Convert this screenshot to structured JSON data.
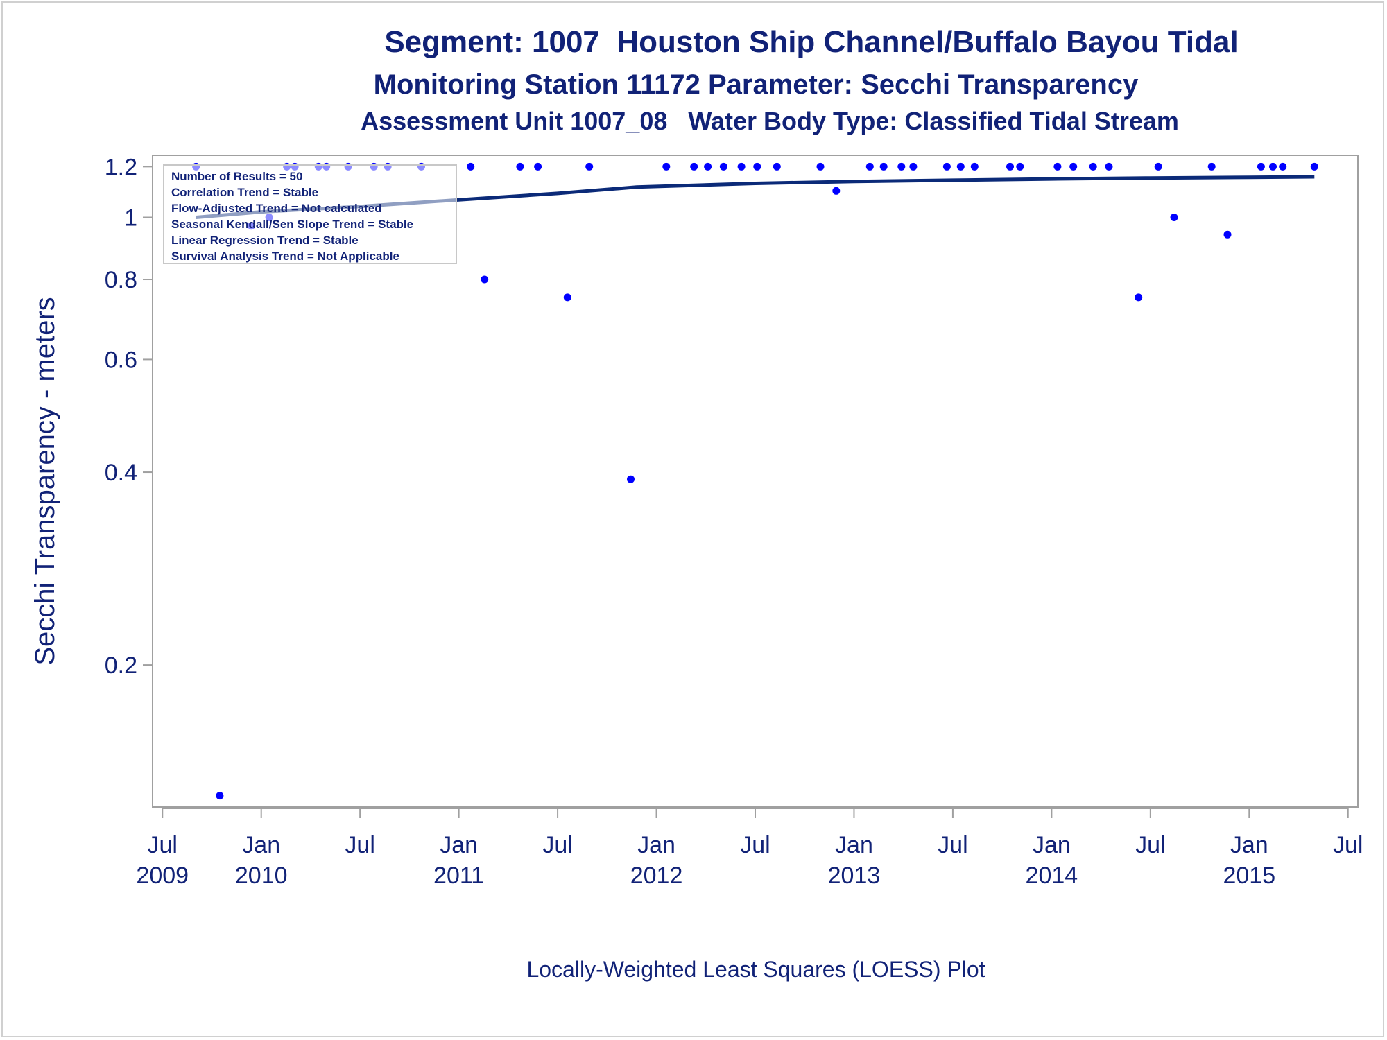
{
  "titles": {
    "line1": "Segment: 1007  Houston Ship Channel/Buffalo Bayou Tidal",
    "line2": "Monitoring Station 11172 Parameter: Secchi Transparency",
    "line3": "Assessment Unit 1007_08   Water Body Type: Classified Tidal Stream"
  },
  "footnote": "Locally-Weighted Least Squares (LOESS) Plot",
  "stats_box": [
    "Number of Results = 50",
    "Correlation Trend = Stable",
    "Flow-Adjusted Trend = Not calculated",
    "Seasonal Kendall/Sen Slope Trend = Stable",
    "Linear Regression Trend = Stable",
    "Survival Analysis Trend = Not Applicable"
  ],
  "colors": {
    "text": "#112277",
    "points": "#0000ff",
    "loess": "#0b2a78",
    "frame": "#a0a0a0"
  },
  "chart_data": {
    "type": "scatter",
    "ylabel": "Secchi Transparency - meters",
    "yscale": "log",
    "ylim": [
      0.12,
      1.25
    ],
    "yticks": [
      0.2,
      0.4,
      0.6,
      0.8,
      1,
      1.2
    ],
    "yticklabels": [
      "0.2",
      "0.4",
      "0.6",
      "0.8",
      "1",
      "1.2"
    ],
    "xlim": [
      2009.45,
      2015.55
    ],
    "xticks": [
      {
        "value": 2009.5,
        "line1": "Jul",
        "line2": "2009"
      },
      {
        "value": 2010.0,
        "line1": "Jan",
        "line2": "2010"
      },
      {
        "value": 2010.5,
        "line1": "Jul",
        "line2": ""
      },
      {
        "value": 2011.0,
        "line1": "Jan",
        "line2": "2011"
      },
      {
        "value": 2011.5,
        "line1": "Jul",
        "line2": ""
      },
      {
        "value": 2012.0,
        "line1": "Jan",
        "line2": "2012"
      },
      {
        "value": 2012.5,
        "line1": "Jul",
        "line2": ""
      },
      {
        "value": 2013.0,
        "line1": "Jan",
        "line2": "2013"
      },
      {
        "value": 2013.5,
        "line1": "Jul",
        "line2": ""
      },
      {
        "value": 2014.0,
        "line1": "Jan",
        "line2": "2014"
      },
      {
        "value": 2014.5,
        "line1": "Jul",
        "line2": ""
      },
      {
        "value": 2015.0,
        "line1": "Jan",
        "line2": "2015"
      },
      {
        "value": 2015.5,
        "line1": "Jul",
        "line2": ""
      }
    ],
    "points": [
      [
        2009.67,
        1.2
      ],
      [
        2009.79,
        0.125
      ],
      [
        2009.95,
        0.97
      ],
      [
        2010.04,
        1.0
      ],
      [
        2010.13,
        1.2
      ],
      [
        2010.17,
        1.2
      ],
      [
        2010.29,
        1.2
      ],
      [
        2010.33,
        1.2
      ],
      [
        2010.44,
        1.2
      ],
      [
        2010.57,
        1.2
      ],
      [
        2010.64,
        1.2
      ],
      [
        2010.81,
        1.2
      ],
      [
        2011.06,
        1.2
      ],
      [
        2011.13,
        0.8
      ],
      [
        2011.31,
        1.2
      ],
      [
        2011.4,
        1.2
      ],
      [
        2011.55,
        0.75
      ],
      [
        2011.66,
        1.2
      ],
      [
        2011.87,
        0.39
      ],
      [
        2012.05,
        1.2
      ],
      [
        2012.19,
        1.2
      ],
      [
        2012.26,
        1.2
      ],
      [
        2012.34,
        1.2
      ],
      [
        2012.43,
        1.2
      ],
      [
        2012.51,
        1.2
      ],
      [
        2012.61,
        1.2
      ],
      [
        2012.83,
        1.2
      ],
      [
        2012.91,
        1.1
      ],
      [
        2013.08,
        1.2
      ],
      [
        2013.15,
        1.2
      ],
      [
        2013.24,
        1.2
      ],
      [
        2013.3,
        1.2
      ],
      [
        2013.47,
        1.2
      ],
      [
        2013.54,
        1.2
      ],
      [
        2013.61,
        1.2
      ],
      [
        2013.79,
        1.2
      ],
      [
        2013.84,
        1.2
      ],
      [
        2014.03,
        1.2
      ],
      [
        2014.11,
        1.2
      ],
      [
        2014.21,
        1.2
      ],
      [
        2014.29,
        1.2
      ],
      [
        2014.44,
        0.75
      ],
      [
        2014.54,
        1.2
      ],
      [
        2014.62,
        1.0
      ],
      [
        2014.81,
        1.2
      ],
      [
        2014.89,
        0.94
      ],
      [
        2015.06,
        1.2
      ],
      [
        2015.12,
        1.2
      ],
      [
        2015.17,
        1.2
      ],
      [
        2015.33,
        1.2
      ]
    ],
    "loess": [
      [
        2009.67,
        1.0
      ],
      [
        2010.0,
        1.02
      ],
      [
        2010.5,
        1.04
      ],
      [
        2011.0,
        1.065
      ],
      [
        2011.5,
        1.09
      ],
      [
        2011.9,
        1.115
      ],
      [
        2012.5,
        1.13
      ],
      [
        2013.0,
        1.138
      ],
      [
        2013.5,
        1.143
      ],
      [
        2014.0,
        1.148
      ],
      [
        2014.5,
        1.152
      ],
      [
        2015.0,
        1.155
      ],
      [
        2015.33,
        1.157
      ]
    ]
  }
}
